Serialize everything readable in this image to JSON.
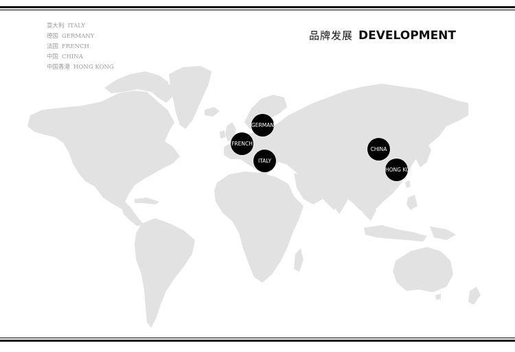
{
  "legend": [
    {
      "zh": "意大利",
      "en": "ITALY"
    },
    {
      "zh": "德国",
      "en": "GERMANY"
    },
    {
      "zh": "法国",
      "en": "FRENCH"
    },
    {
      "zh": "中国",
      "en": "CHINA"
    },
    {
      "zh": "中国香港",
      "en": "HONG KONG"
    }
  ],
  "heading": {
    "zh": "品牌发展",
    "en": "DEVELOPMENT"
  },
  "markers": [
    {
      "label": "GERMANY"
    },
    {
      "label": "FRENCH"
    },
    {
      "label": "ITALY"
    },
    {
      "label": "CHINA"
    },
    {
      "label": "HONG KONG"
    }
  ],
  "colors": {
    "land": "#e2e2e2",
    "marker": "#000000",
    "legend_text": "#9a9a9a"
  }
}
